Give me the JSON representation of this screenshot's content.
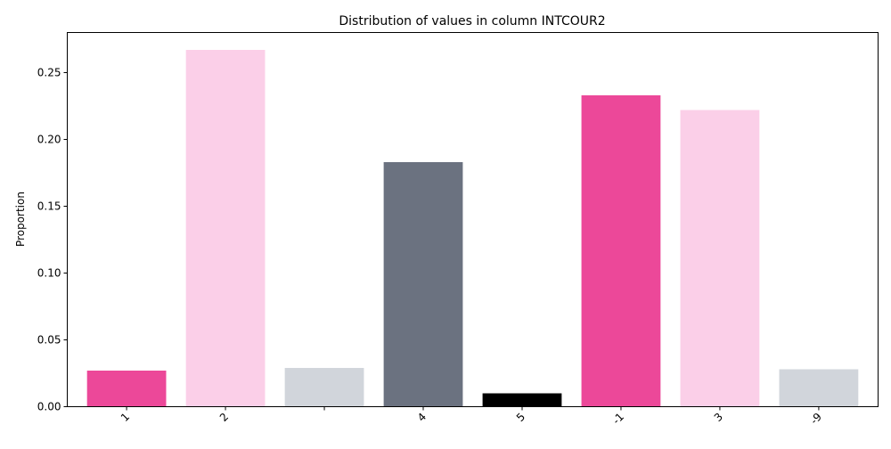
{
  "chart_data": {
    "type": "bar",
    "title": "Distribution of values in column INTCOUR2",
    "xlabel": "",
    "ylabel": "Proportion",
    "ylim": [
      0,
      0.28
    ],
    "yticks": [
      0.0,
      0.05,
      0.1,
      0.15,
      0.2,
      0.25
    ],
    "ytick_labels": [
      "0.00",
      "0.05",
      "0.10",
      "0.15",
      "0.20",
      "0.25"
    ],
    "categories": [
      "1",
      "2",
      " ",
      "4",
      "5",
      "-1",
      "3",
      "-9"
    ],
    "values": [
      0.027,
      0.267,
      0.029,
      0.183,
      0.01,
      0.233,
      0.222,
      0.028
    ],
    "colors": [
      "#ec4899",
      "#fbcfe8",
      "#d1d5db",
      "#6b7280",
      "#000000",
      "#ec4899",
      "#fbcfe8",
      "#d1d5db"
    ],
    "grid": false,
    "legend": "none"
  }
}
